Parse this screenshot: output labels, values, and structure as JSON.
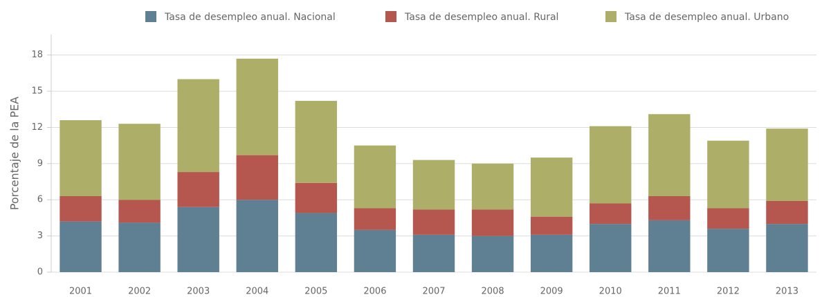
{
  "chart_data": {
    "type": "stacked_bar",
    "y_axis_label": "Porcentaje de la PEA",
    "categories": [
      "2001",
      "2002",
      "2003",
      "2004",
      "2005",
      "2006",
      "2007",
      "2008",
      "2009",
      "2010",
      "2011",
      "2012",
      "2013"
    ],
    "series": [
      {
        "name": "Tasa de desempleo anual. Nacional",
        "color": "#5f7f93",
        "values": [
          4.2,
          4.1,
          5.4,
          6.0,
          4.9,
          3.5,
          3.1,
          3.0,
          3.1,
          4.0,
          4.3,
          3.6,
          4.0
        ]
      },
      {
        "name": "Tasa de desempleo anual. Rural",
        "color": "#b5574f",
        "values": [
          2.1,
          1.9,
          2.9,
          3.7,
          2.5,
          1.8,
          2.1,
          2.2,
          1.5,
          1.7,
          2.0,
          1.7,
          1.9
        ]
      },
      {
        "name": "Tasa de desempleo anual. Urbano",
        "color": "#adaf69",
        "values": [
          6.3,
          6.3,
          7.7,
          8.0,
          6.8,
          5.2,
          4.1,
          3.8,
          4.9,
          6.4,
          6.8,
          5.6,
          6.0
        ]
      }
    ],
    "ylim": [
      0,
      19.7
    ],
    "yticks": [
      0,
      3,
      6,
      9,
      12,
      15,
      18
    ],
    "grid": true
  }
}
